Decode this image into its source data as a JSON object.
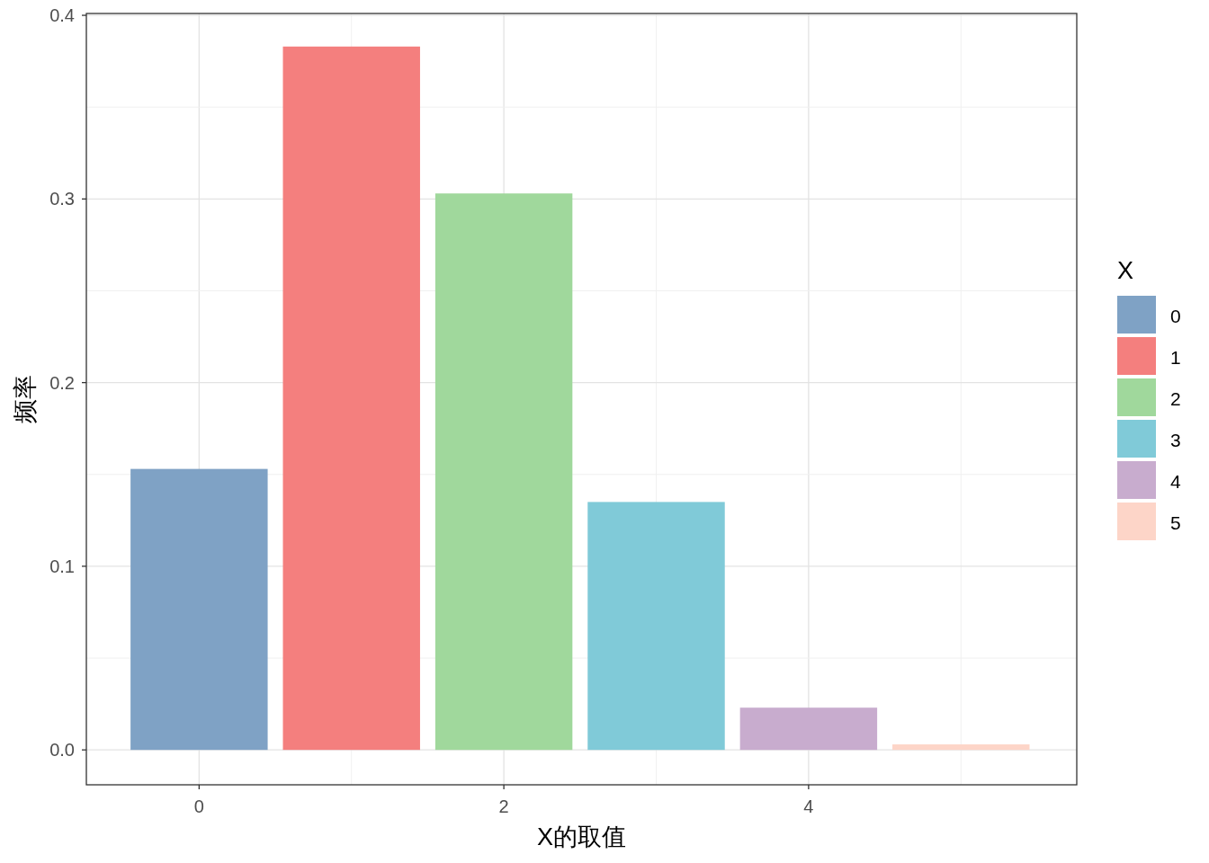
{
  "chart_data": {
    "type": "bar",
    "xlabel": "X的取值",
    "ylabel": "频率",
    "legend_title": "X",
    "legend": "right",
    "grid": true,
    "xlim": [
      -0.74,
      5.76
    ],
    "xticks": [
      0,
      2,
      4
    ],
    "ylim": [
      -0.019,
      0.401
    ],
    "yticks": [
      {
        "value": 0,
        "label": "0.0"
      },
      0.1,
      0.2,
      0.3,
      0.4
    ],
    "series": [
      {
        "name": "0",
        "color": "#7fa2c5",
        "x": [
          0
        ],
        "values": [
          0.153
        ]
      },
      {
        "name": "1",
        "color": "#f47f7e",
        "x": [
          1
        ],
        "values": [
          0.383
        ]
      },
      {
        "name": "2",
        "color": "#a0d89c",
        "x": [
          2
        ],
        "values": [
          0.303
        ]
      },
      {
        "name": "3",
        "color": "#80cad8",
        "x": [
          3
        ],
        "values": [
          0.135
        ]
      },
      {
        "name": "4",
        "color": "#c8acce",
        "x": [
          4
        ],
        "values": [
          0.023
        ]
      },
      {
        "name": "5",
        "color": "#fdd5c8",
        "x": [
          5
        ],
        "values": [
          0.003
        ]
      }
    ]
  }
}
